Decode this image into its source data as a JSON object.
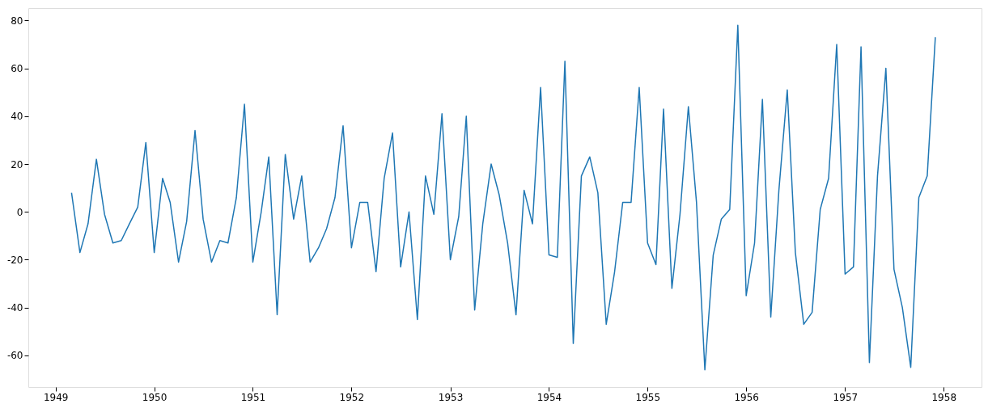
{
  "chart_data": {
    "type": "line",
    "x": [
      "1949-03",
      "1949-04",
      "1949-05",
      "1949-06",
      "1949-07",
      "1949-08",
      "1949-09",
      "1949-10",
      "1949-11",
      "1949-12",
      "1950-01",
      "1950-02",
      "1950-03",
      "1950-04",
      "1950-05",
      "1950-06",
      "1950-07",
      "1950-08",
      "1950-09",
      "1950-10",
      "1950-11",
      "1950-12",
      "1951-01",
      "1951-02",
      "1951-03",
      "1951-04",
      "1951-05",
      "1951-06",
      "1951-07",
      "1951-08",
      "1951-09",
      "1951-10",
      "1951-11",
      "1951-12",
      "1952-01",
      "1952-02",
      "1952-03",
      "1952-04",
      "1952-05",
      "1952-06",
      "1952-07",
      "1952-08",
      "1952-09",
      "1952-10",
      "1952-11",
      "1952-12",
      "1953-01",
      "1953-02",
      "1953-03",
      "1953-04",
      "1953-05",
      "1953-06",
      "1953-07",
      "1953-08",
      "1953-09",
      "1953-10",
      "1953-11",
      "1953-12",
      "1954-01",
      "1954-02",
      "1954-03",
      "1954-04",
      "1954-05",
      "1954-06",
      "1954-07",
      "1954-08",
      "1954-09",
      "1954-10",
      "1954-11",
      "1954-12",
      "1955-01",
      "1955-02",
      "1955-03",
      "1955-04",
      "1955-05",
      "1955-06",
      "1955-07",
      "1955-08",
      "1955-09",
      "1955-10",
      "1955-11",
      "1955-12",
      "1956-01",
      "1956-02",
      "1956-03",
      "1956-04",
      "1956-05",
      "1956-06",
      "1956-07",
      "1956-08",
      "1956-09",
      "1956-10",
      "1956-11",
      "1956-12",
      "1957-01",
      "1957-02",
      "1957-03",
      "1957-04",
      "1957-05",
      "1957-06",
      "1957-07",
      "1957-08",
      "1957-09",
      "1957-10",
      "1957-11",
      "1957-12"
    ],
    "series": [
      {
        "color": "#1f77b4",
        "values": [
          8,
          -17,
          -5,
          22,
          -1,
          -13,
          -12,
          -5,
          2,
          29,
          -17,
          14,
          4,
          -21,
          -4,
          34,
          -3,
          -21,
          -12,
          -13,
          6,
          45,
          -21,
          0,
          23,
          -43,
          24,
          -3,
          15,
          -21,
          -15,
          -7,
          6,
          36,
          -15,
          4,
          4,
          -25,
          14,
          33,
          -23,
          0,
          -45,
          15,
          -1,
          41,
          -20,
          -2,
          40,
          -41,
          -5,
          20,
          7,
          -13,
          -43,
          9,
          -5,
          52,
          -18,
          -19,
          63,
          -55,
          15,
          23,
          8,
          -47,
          -25,
          4,
          4,
          52,
          -13,
          -22,
          43,
          -32,
          -1,
          44,
          4,
          -66,
          -18,
          -3,
          1,
          78,
          -35,
          -13,
          47,
          -44,
          9,
          51,
          -17,
          -47,
          -42,
          1,
          14,
          70,
          -26,
          -23,
          69,
          -63,
          15,
          60,
          -24,
          -40,
          -65,
          6,
          15,
          73
        ]
      }
    ],
    "xlim": [
      "1948-09-22",
      "1958-05-21"
    ],
    "xticks": [
      "1949",
      "1950",
      "1951",
      "1952",
      "1953",
      "1954",
      "1955",
      "1956",
      "1957",
      "1958"
    ],
    "ylim": [
      -73.2,
      85.2
    ],
    "yticks": [
      -60,
      -40,
      -20,
      0,
      20,
      40,
      60,
      80
    ],
    "grid": false,
    "marker": "none",
    "line_style": "solid"
  }
}
